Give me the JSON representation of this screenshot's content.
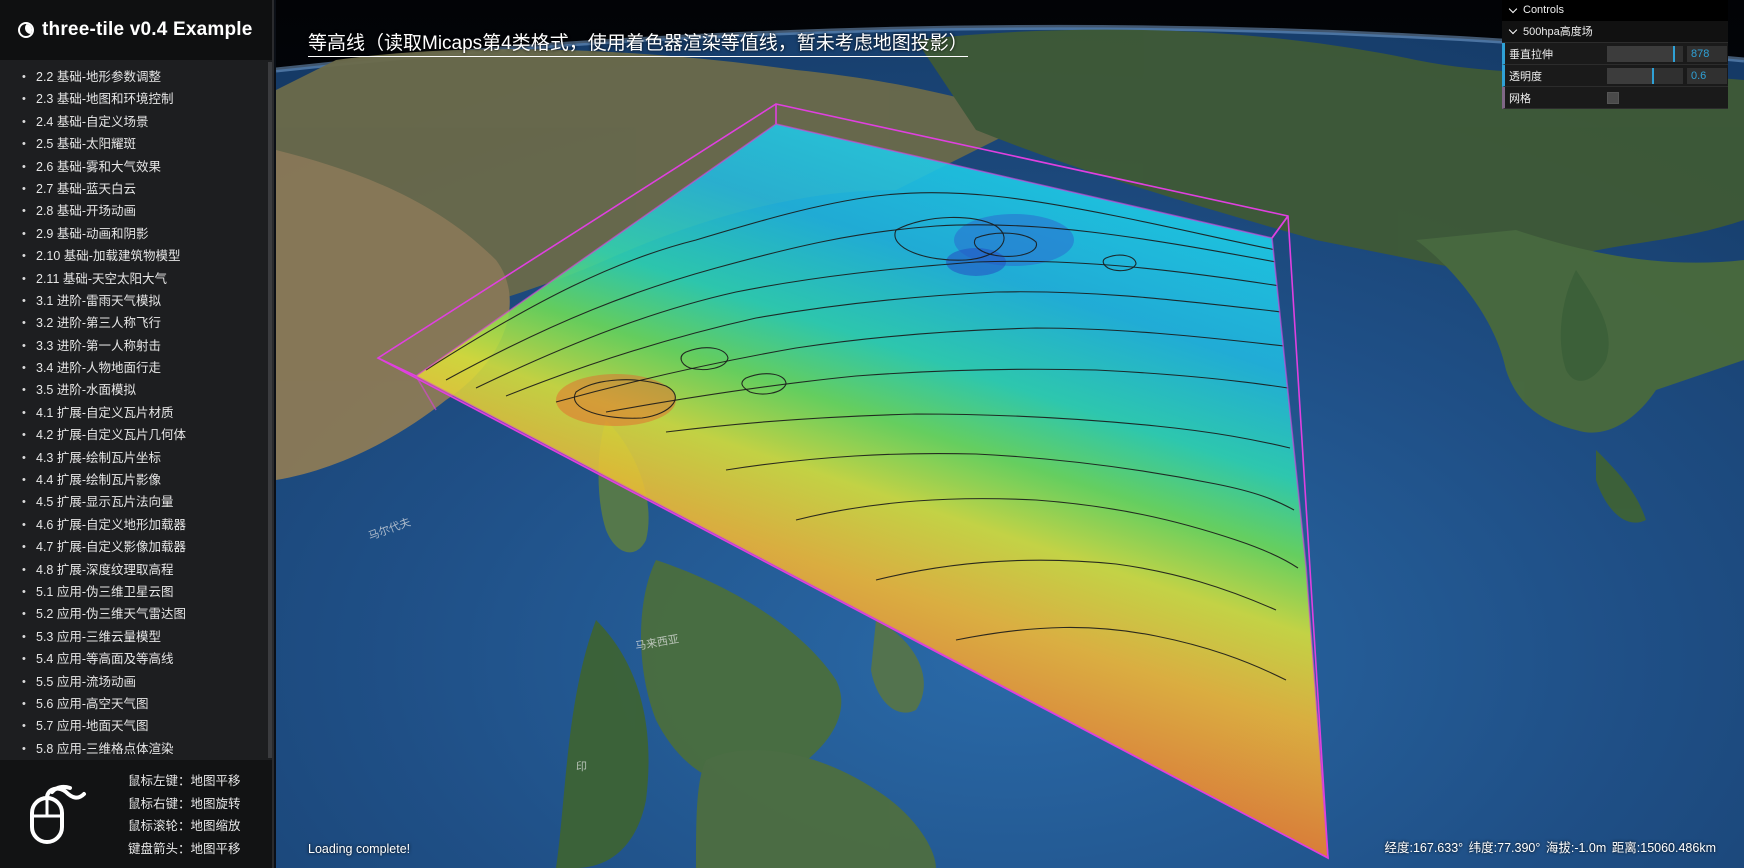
{
  "app": {
    "title": "three-tile v0.4 Example"
  },
  "menu": {
    "items": [
      "2.2 基础-地形参数调整",
      "2.3 基础-地图和环境控制",
      "2.4 基础-自定义场景",
      "2.5 基础-太阳耀斑",
      "2.6 基础-雾和大气效果",
      "2.7 基础-蓝天白云",
      "2.8 基础-开场动画",
      "2.9 基础-动画和阴影",
      "2.10 基础-加载建筑物模型",
      "2.11 基础-天空太阳大气",
      "3.1 进阶-雷雨天气模拟",
      "3.2 进阶-第三人称飞行",
      "3.3 进阶-第一人称射击",
      "3.4 进阶-人物地面行走",
      "3.5 进阶-水面模拟",
      "4.1 扩展-自定义瓦片材质",
      "4.2 扩展-自定义瓦片几何体",
      "4.3 扩展-绘制瓦片坐标",
      "4.4 扩展-绘制瓦片影像",
      "4.5 扩展-显示瓦片法向量",
      "4.6 扩展-自定义地形加载器",
      "4.7 扩展-自定义影像加载器",
      "4.8 扩展-深度纹理取高程",
      "5.1 应用-伪三维卫星云图",
      "5.2 应用-伪三维天气雷达图",
      "5.3 应用-三维云量模型",
      "5.4 应用-等高面及等高线",
      "5.5 应用-流场动画",
      "5.6 应用-高空天气图",
      "5.7 应用-地面天气图",
      "5.8 应用-三维格点体渲染"
    ]
  },
  "mouse_help": {
    "icon": "mouse-icon",
    "lines": [
      "鼠标左键：地图平移",
      "鼠标右键：地图旋转",
      "鼠标滚轮：地图缩放",
      "键盘箭头：地图平移"
    ]
  },
  "viewport": {
    "title": "等高线（读取Micaps第4类格式，使用着色器渲染等值线，暂未考虑地图投影）",
    "status": "Loading complete!",
    "coords": {
      "lon": "经度:167.633°",
      "lat": "纬度:77.390°",
      "alt": "海拔:-1.0m",
      "dist": "距离:15060.486km"
    },
    "colors": {
      "outline": "#e040e0",
      "cold": "#19c8e6",
      "warm": "#f04a2a"
    }
  },
  "controls": {
    "header": "Controls",
    "folder": "500hpa高度场",
    "rows": {
      "stretch": {
        "label": "垂直拉伸",
        "value": "878",
        "level": 0.88
      },
      "opacity": {
        "label": "透明度",
        "value": "0.6",
        "level": 0.6
      },
      "grid": {
        "label": "网格",
        "checked": false
      }
    }
  }
}
